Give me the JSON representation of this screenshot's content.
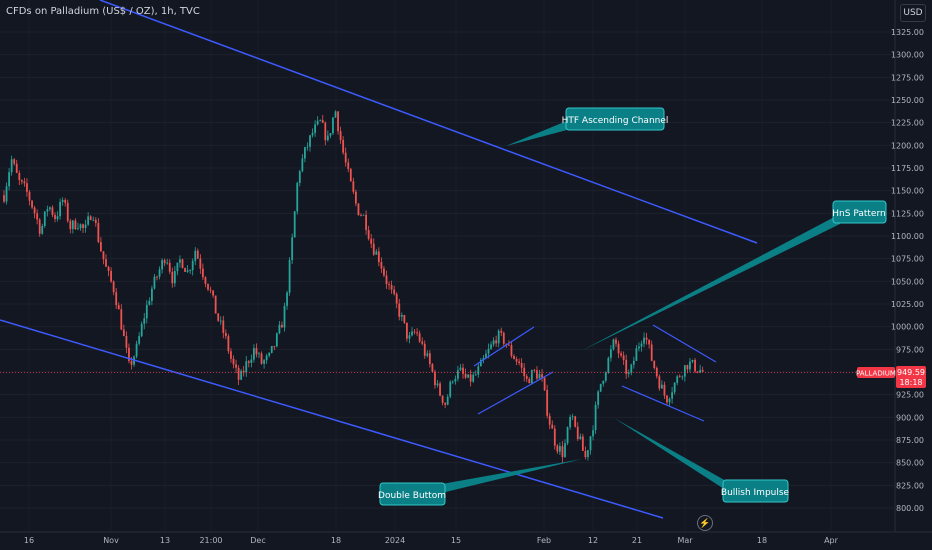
{
  "header": {
    "symbol_text": "CFDs on Palladium (US$ / OZ), 1h, TVC"
  },
  "currency_button": "USD",
  "colors": {
    "background": "#131722",
    "up": "#26a69a",
    "down": "#ef5350",
    "trend_line": "#3d5afe",
    "label_fill": "#0b7f86",
    "label_border": "#30c9c9",
    "price_tag": "#f23645",
    "axis_text": "#b2b5be"
  },
  "chart_data": {
    "type": "line",
    "title": "CFDs on Palladium (US$ / OZ), 1h, TVC",
    "xlabel": "",
    "ylabel": "",
    "ylim": [
      795,
      1335
    ],
    "grid": true,
    "x_ticks": [
      "16",
      "Nov",
      "13",
      "21:00",
      "Dec",
      "18",
      "2024",
      "15",
      "Feb",
      "12",
      "21",
      "Mar",
      "18",
      "Apr"
    ],
    "y_ticks": [
      800,
      825,
      850,
      875,
      900,
      925,
      950,
      975,
      1000,
      1025,
      1050,
      1075,
      1100,
      1125,
      1150,
      1175,
      1200,
      1225,
      1250,
      1275,
      1300,
      1325
    ],
    "y_tick_labels": [
      "800.00",
      "825.00",
      "850.00",
      "875.00",
      "900.00",
      "925.00",
      "950.00",
      "975.00",
      "1000.00",
      "1025.00",
      "1050.00",
      "1075.00",
      "1100.00",
      "1125.00",
      "1150.00",
      "1175.00",
      "1200.00",
      "1225.00",
      "1250.00",
      "1275.00",
      "1300.00",
      "1325.00"
    ],
    "series": [
      {
        "points": [
          [
            "16",
            1145
          ],
          [
            "",
            1185
          ],
          [
            "",
            1160
          ],
          [
            "",
            1150
          ],
          [
            "",
            1130
          ],
          [
            "",
            1105
          ],
          [
            "",
            1135
          ],
          [
            "",
            1120
          ],
          [
            "",
            1140
          ],
          [
            "",
            1110
          ],
          [
            "",
            1115
          ],
          [
            "",
            1105
          ],
          [
            "",
            1130
          ],
          [
            "Nov",
            1090
          ],
          [
            "",
            1060
          ],
          [
            "",
            1040
          ],
          [
            "",
            1000
          ],
          [
            "13",
            955
          ],
          [
            "",
            975
          ],
          [
            "",
            1010
          ],
          [
            "",
            1040
          ],
          [
            "",
            1060
          ],
          [
            "",
            1080
          ],
          [
            "",
            1050
          ],
          [
            "21:00",
            1075
          ],
          [
            "",
            1060
          ],
          [
            "",
            1085
          ],
          [
            "",
            1060
          ],
          [
            "",
            1040
          ],
          [
            "",
            1010
          ],
          [
            "",
            990
          ],
          [
            "",
            960
          ],
          [
            "Dec",
            940
          ],
          [
            "",
            960
          ],
          [
            "",
            975
          ],
          [
            "",
            960
          ],
          [
            "",
            965
          ],
          [
            "",
            985
          ],
          [
            "",
            1010
          ],
          [
            "",
            1080
          ],
          [
            "",
            1170
          ],
          [
            "18",
            1195
          ],
          [
            "",
            1215
          ],
          [
            "",
            1225
          ],
          [
            "",
            1205
          ],
          [
            "",
            1240
          ],
          [
            "",
            1195
          ],
          [
            "",
            1160
          ],
          [
            "",
            1130
          ],
          [
            "",
            1120
          ],
          [
            "",
            1090
          ],
          [
            "2024",
            1075
          ],
          [
            "",
            1050
          ],
          [
            "",
            1030
          ],
          [
            "",
            1010
          ],
          [
            "",
            985
          ],
          [
            "",
            995
          ],
          [
            "",
            975
          ],
          [
            "15",
            955
          ],
          [
            "",
            930
          ],
          [
            "",
            915
          ],
          [
            "",
            945
          ],
          [
            "",
            950
          ],
          [
            "",
            940
          ],
          [
            "",
            945
          ],
          [
            "",
            960
          ],
          [
            "",
            975
          ],
          [
            "",
            990
          ],
          [
            "",
            985
          ],
          [
            "Feb",
            970
          ],
          [
            "",
            960
          ],
          [
            "",
            940
          ],
          [
            "",
            950
          ],
          [
            "",
            945
          ],
          [
            "",
            900
          ],
          [
            "",
            870
          ],
          [
            "12",
            860
          ],
          [
            "",
            900
          ],
          [
            "",
            880
          ],
          [
            "",
            855
          ],
          [
            "",
            890
          ],
          [
            "",
            935
          ],
          [
            "21",
            960
          ],
          [
            "",
            985
          ],
          [
            "",
            960
          ],
          [
            "",
            945
          ],
          [
            "",
            975
          ],
          [
            "",
            995
          ],
          [
            "",
            965
          ],
          [
            "",
            940
          ],
          [
            "",
            920
          ],
          [
            "Mar",
            935
          ],
          [
            "",
            950
          ],
          [
            "",
            960
          ],
          [
            "",
            955
          ],
          [
            "",
            950
          ]
        ]
      }
    ],
    "current_price": {
      "label": "PALLADIUM",
      "value": "949.59",
      "countdown": "18:18",
      "level": 949.59
    },
    "annotations": [
      "HTF Ascending Channel",
      "HnS Pattern",
      "Double Buttom",
      "Bullish Impulse"
    ]
  }
}
